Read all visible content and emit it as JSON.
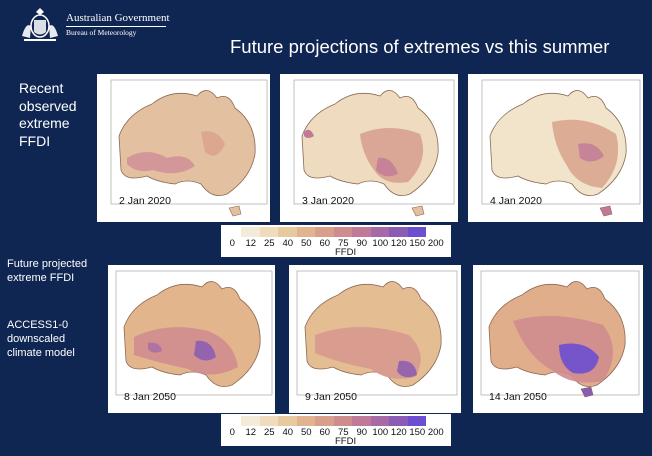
{
  "header": {
    "logo_line1": "Australian Government",
    "logo_line2": "Bureau of Meteorology",
    "title": "Future projections of extremes vs this summer"
  },
  "rows": {
    "recent_label": "Recent observed extreme FFDI",
    "future_label": "Future projected extreme FFDI",
    "model_label": "ACCESS1-0 downscaled climate model"
  },
  "panels_top": [
    "2 Jan 2020",
    "3 Jan 2020",
    "4 Jan 2020"
  ],
  "panels_bottom": [
    "8 Jan 2050",
    "9 Jan 2050",
    "14 Jan 2050"
  ],
  "colorbar": {
    "ticks": [
      "0",
      "12",
      "25",
      "40",
      "50",
      "60",
      "75",
      "90",
      "100",
      "120",
      "150",
      "200"
    ],
    "colors": [
      "#ffffff",
      "#f4ecd8",
      "#efdcbc",
      "#e8caa0",
      "#e1b48f",
      "#d8a08b",
      "#cf8c8e",
      "#c07a98",
      "#a86aa6",
      "#8a5cb4",
      "#6b4fd0"
    ],
    "label": "FFDI"
  },
  "colors": {
    "background": "#102652",
    "text": "#ffffff"
  }
}
